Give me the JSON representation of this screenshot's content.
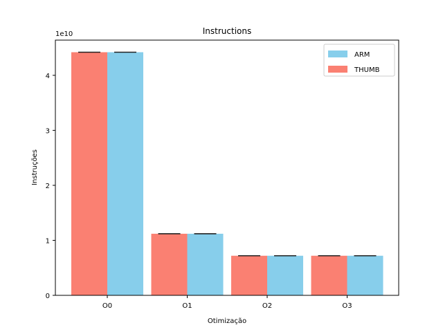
{
  "chart_data": {
    "type": "bar",
    "title": "Instructions",
    "xlabel": "Otimização",
    "ylabel": "Instruções",
    "offset_label": "1e10",
    "categories": [
      "O0",
      "O1",
      "O2",
      "O3"
    ],
    "ylim": [
      0,
      4.64
    ],
    "yticks": [
      0,
      1,
      2,
      3,
      4
    ],
    "legend_position": "top-right",
    "grid": false,
    "series": [
      {
        "name": "THUMB",
        "color": "#fa8072",
        "values": [
          4.42,
          1.12,
          0.72,
          0.72
        ]
      },
      {
        "name": "ARM",
        "color": "#87ceeb",
        "values": [
          4.42,
          1.12,
          0.72,
          0.72
        ]
      }
    ],
    "legend_order": [
      "ARM",
      "THUMB"
    ]
  }
}
